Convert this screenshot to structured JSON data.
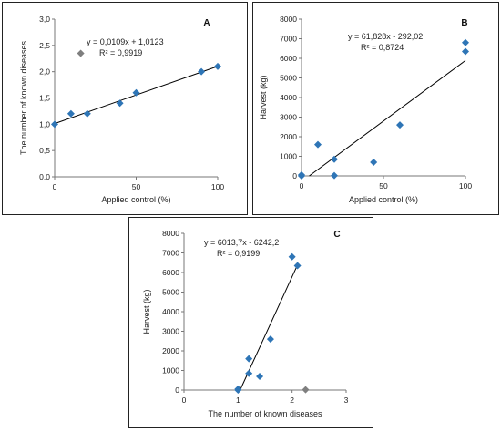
{
  "chart_data": [
    {
      "type": "scatter",
      "panel_label": "A",
      "xlabel": "Applied control (%)",
      "ylabel": "The number of known diseases",
      "xlim": [
        0,
        100
      ],
      "ylim": [
        0,
        3
      ],
      "x_ticks": [
        "0",
        "50",
        "100"
      ],
      "x_tick_values": [
        0,
        50,
        100
      ],
      "y_ticks": [
        "0,0",
        "0,5",
        "1,0",
        "1,5",
        "2,0",
        "2,5",
        "3,0"
      ],
      "y_tick_values": [
        0,
        0.5,
        1.0,
        1.5,
        2.0,
        2.5,
        3.0
      ],
      "points": [
        {
          "x": 0,
          "y": 1.0
        },
        {
          "x": 10,
          "y": 1.2
        },
        {
          "x": 20,
          "y": 1.2
        },
        {
          "x": 40,
          "y": 1.4
        },
        {
          "x": 50,
          "y": 1.6
        },
        {
          "x": 90,
          "y": 2.0
        },
        {
          "x": 100,
          "y": 2.1
        }
      ],
      "outliers": [
        {
          "x": 16,
          "y": 2.35
        }
      ],
      "trendline": {
        "slope": 0.0109,
        "intercept": 1.0123,
        "x_from": 0,
        "x_to": 100
      },
      "equation": "y = 0,0109x + 1,0123",
      "r2": "R² = 0,9919",
      "colors": {
        "point": "#2e75b6",
        "outlier": "#7f7f7f",
        "line": "#000000"
      }
    },
    {
      "type": "scatter",
      "panel_label": "B",
      "xlabel": "Applied control (%)",
      "ylabel": "Harvest (kg)",
      "xlim": [
        0,
        100
      ],
      "ylim": [
        0,
        8000
      ],
      "x_ticks": [
        "0",
        "50",
        "100"
      ],
      "x_tick_values": [
        0,
        50,
        100
      ],
      "y_ticks": [
        "0",
        "1000",
        "2000",
        "3000",
        "4000",
        "5000",
        "6000",
        "7000",
        "8000"
      ],
      "y_tick_values": [
        0,
        1000,
        2000,
        3000,
        4000,
        5000,
        6000,
        7000,
        8000
      ],
      "points": [
        {
          "x": 0,
          "y": 50
        },
        {
          "x": 0,
          "y": 0
        },
        {
          "x": 10,
          "y": 1600
        },
        {
          "x": 20,
          "y": 850
        },
        {
          "x": 20,
          "y": 20
        },
        {
          "x": 44,
          "y": 700
        },
        {
          "x": 60,
          "y": 2600
        },
        {
          "x": 100,
          "y": 6350
        },
        {
          "x": 100,
          "y": 6800
        }
      ],
      "outliers": [],
      "trendline": {
        "slope": 61.828,
        "intercept": -292.02,
        "x_from": 4.72,
        "x_to": 100
      },
      "equation": "y = 61,828x - 292,02",
      "r2": "R² = 0,8724",
      "colors": {
        "point": "#2e75b6",
        "outlier": "#7f7f7f",
        "line": "#000000"
      }
    },
    {
      "type": "scatter",
      "panel_label": "C",
      "xlabel": "The number of  known diseases",
      "ylabel": "Harvest (kg)",
      "xlim": [
        0,
        3
      ],
      "ylim": [
        0,
        8000
      ],
      "x_ticks": [
        "0",
        "1",
        "2",
        "3"
      ],
      "x_tick_values": [
        0,
        1,
        2,
        3
      ],
      "y_ticks": [
        "0",
        "1000",
        "2000",
        "3000",
        "4000",
        "5000",
        "6000",
        "7000",
        "8000"
      ],
      "y_tick_values": [
        0,
        1000,
        2000,
        3000,
        4000,
        5000,
        6000,
        7000,
        8000
      ],
      "points": [
        {
          "x": 1.0,
          "y": 0
        },
        {
          "x": 1.0,
          "y": 50
        },
        {
          "x": 1.2,
          "y": 1600
        },
        {
          "x": 1.2,
          "y": 850
        },
        {
          "x": 1.4,
          "y": 700
        },
        {
          "x": 1.6,
          "y": 2600
        },
        {
          "x": 2.0,
          "y": 6800
        },
        {
          "x": 2.1,
          "y": 6350
        }
      ],
      "outliers": [
        {
          "x": 2.25,
          "y": 20
        }
      ],
      "trendline": {
        "slope": 6013.7,
        "intercept": -6242.2,
        "x_from": 1.038,
        "x_to": 2.1
      },
      "equation": "y = 6013,7x - 6242,2",
      "r2": "R² = 0,9199",
      "colors": {
        "point": "#2e75b6",
        "outlier": "#7f7f7f",
        "line": "#000000"
      }
    }
  ]
}
